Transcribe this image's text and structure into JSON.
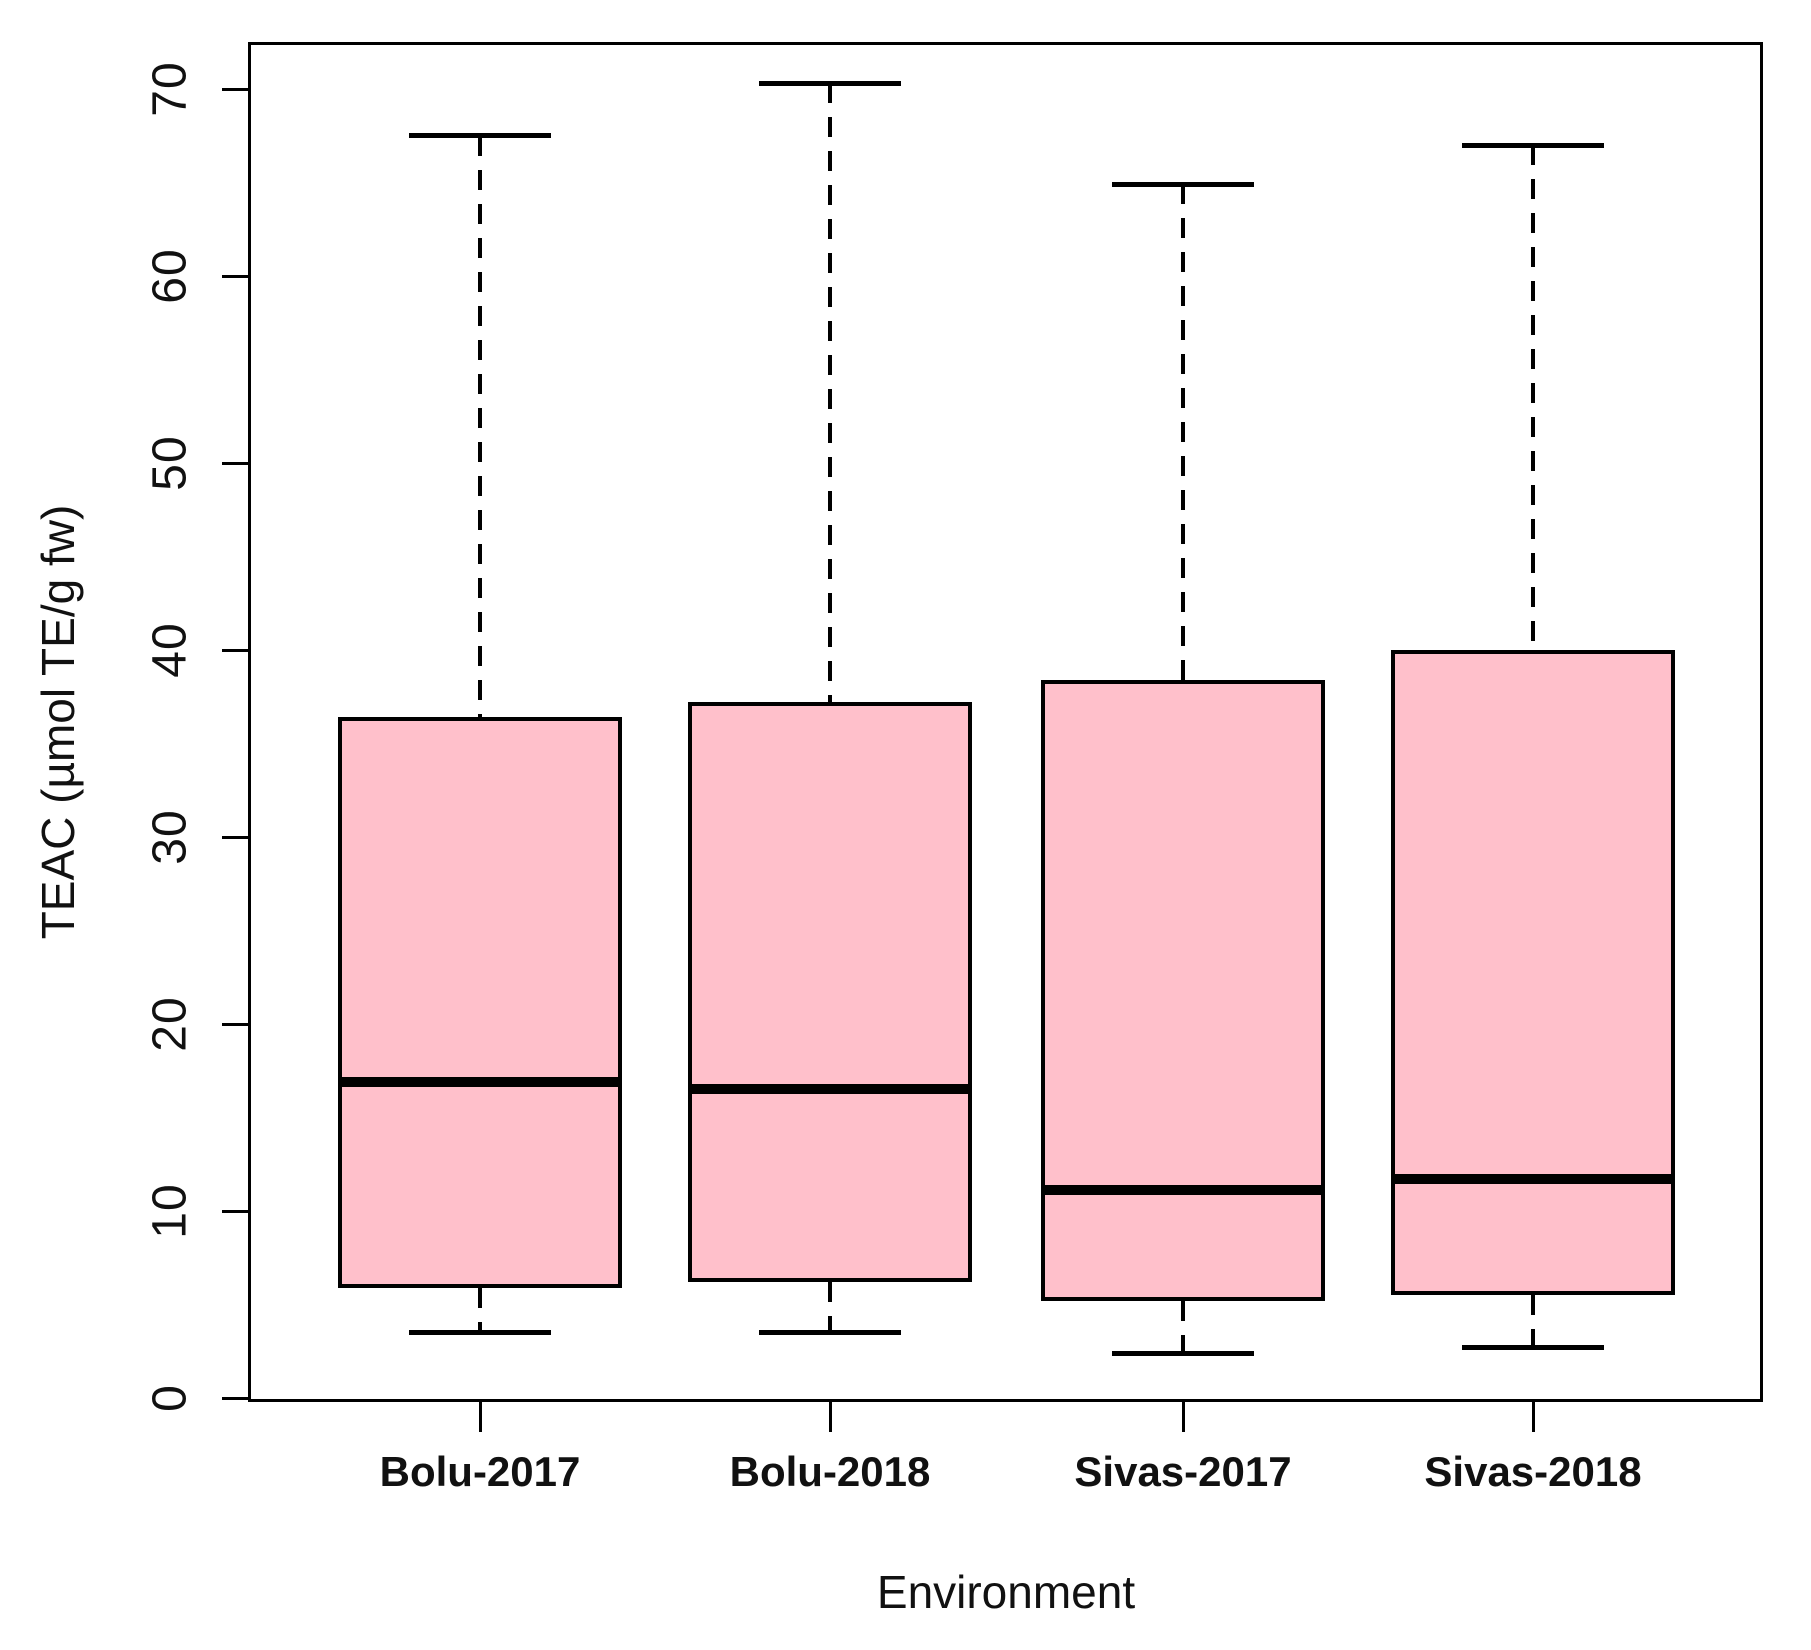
{
  "chart_data": {
    "type": "boxplot",
    "title": "",
    "xlabel": "Environment",
    "ylabel": "TEAC (µmol TE/g fw)",
    "ylim": [
      0,
      70
    ],
    "yticks": [
      0,
      10,
      20,
      30,
      40,
      50,
      60,
      70
    ],
    "categories": [
      "Bolu-2017",
      "Bolu-2018",
      "Sivas-2017",
      "Sivas-2018"
    ],
    "series": [
      {
        "name": "Bolu-2017",
        "lower_whisker": 3.5,
        "q1": 5.9,
        "median": 16.9,
        "q3": 36.4,
        "upper_whisker": 67.5
      },
      {
        "name": "Bolu-2018",
        "lower_whisker": 3.5,
        "q1": 6.2,
        "median": 16.5,
        "q3": 37.2,
        "upper_whisker": 70.3
      },
      {
        "name": "Sivas-2017",
        "lower_whisker": 2.4,
        "q1": 5.2,
        "median": 11.1,
        "q3": 38.4,
        "upper_whisker": 64.9
      },
      {
        "name": "Sivas-2018",
        "lower_whisker": 2.7,
        "q1": 5.5,
        "median": 11.7,
        "q3": 40.0,
        "upper_whisker": 67.0
      }
    ],
    "grid": false,
    "legend": "none",
    "whisker_line_style": "dashed",
    "colors": {
      "box_fill": "#ffc0cb",
      "line": "#000000",
      "background": "#ffffff"
    }
  }
}
